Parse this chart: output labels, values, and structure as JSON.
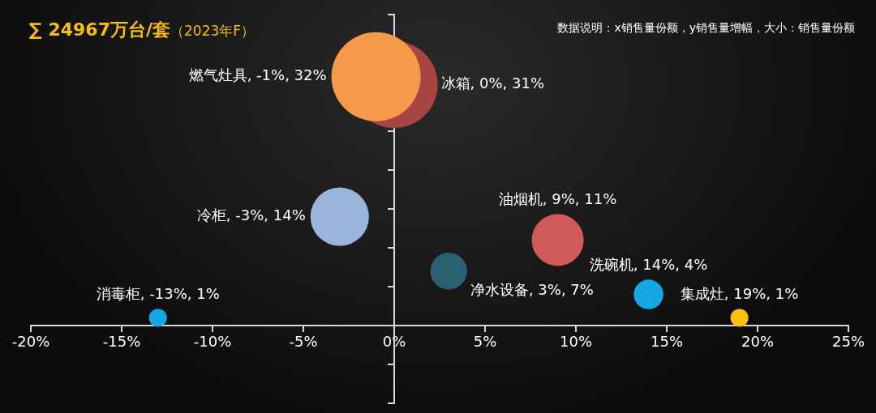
{
  "chart_data": {
    "type": "bubble",
    "title": "∑ 24967万台/套",
    "subtitle": "（2023年F）",
    "annotations": [
      "数据说明：x销售量份额，y销售量增幅，大小：销售量份额"
    ],
    "x": [
      0,
      -1,
      -3,
      9,
      3,
      14,
      -13,
      19
    ],
    "values": [
      31,
      32,
      14,
      11,
      7,
      4,
      1,
      1
    ],
    "sizes": [
      0.95,
      1,
      0.43,
      0.34,
      0.17,
      0.11,
      0.04,
      0.04
    ],
    "colors": [
      "#a64543",
      "#f5994a",
      "#9ab5dc",
      "#cf5a58",
      "#2a6170",
      "#16a8e6",
      "#16a8e6",
      "#fbbf10"
    ],
    "value_labels": [
      "冰箱, 0%, 31%",
      "燃气灶具, -1%, 32%",
      "冷柜, -3%, 14%",
      "油烟机, 9%, 11%",
      "净水设备, 3%, 7%",
      "洗碗机, 14%, 4%",
      "消毒柜, -13%, 1%",
      "集成灶, 19%, 1%"
    ],
    "xlim": [
      -20,
      25
    ],
    "xticks": [
      {
        "value": -20,
        "label": "-20%"
      },
      {
        "value": -15,
        "label": "-15%"
      },
      {
        "value": -10,
        "label": "-10%"
      },
      {
        "value": -5,
        "label": "-5%"
      },
      {
        "value": 0,
        "label": "0%"
      },
      {
        "value": 5,
        "label": "5%"
      },
      {
        "value": 10,
        "label": "10%"
      },
      {
        "value": 15,
        "label": "15%"
      },
      {
        "value": 20,
        "label": "20%"
      },
      {
        "value": 25,
        "label": "25%"
      }
    ],
    "ylim": [
      -10,
      40
    ],
    "yticks": [
      {
        "value": -10,
        "label": null
      },
      {
        "value": -5,
        "label": null
      },
      {
        "value": 0,
        "label": null
      },
      {
        "value": 5,
        "label": null
      },
      {
        "value": 10,
        "label": null
      },
      {
        "value": 15,
        "label": null
      },
      {
        "value": 20,
        "label": null
      },
      {
        "value": 25,
        "label": null
      },
      {
        "value": 30,
        "label": null
      },
      {
        "value": 35,
        "label": null
      },
      {
        "value": 40,
        "label": null
      }
    ],
    "tick_labels": "x"
  }
}
